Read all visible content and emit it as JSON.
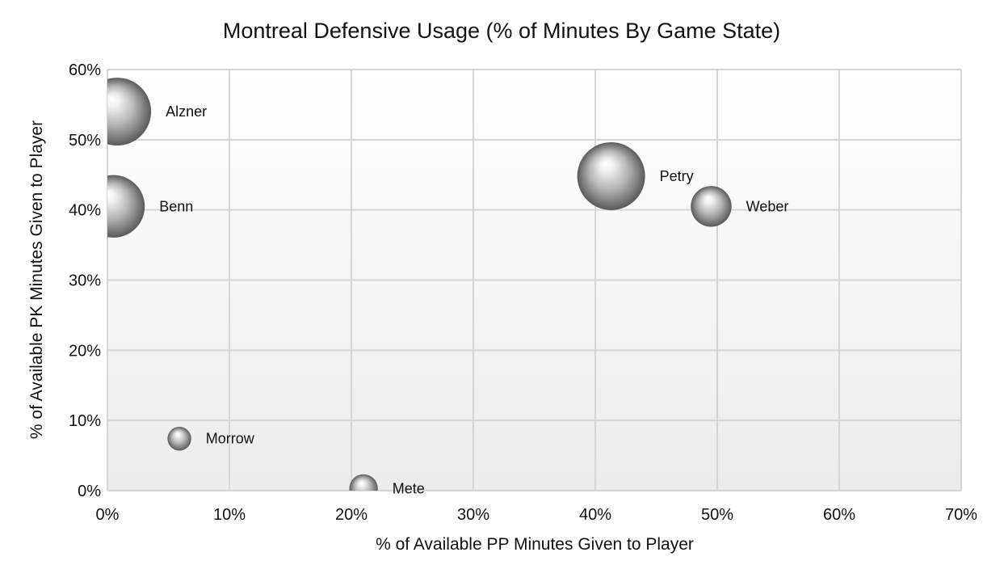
{
  "chart_data": {
    "type": "scatter",
    "subtype": "bubble",
    "title": "Montreal Defensive Usage (% of Minutes By Game State)",
    "xlabel": "% of Available PP Minutes Given to Player",
    "ylabel": "% of Available PK Minutes Given to Player",
    "xlim": [
      0,
      70
    ],
    "ylim": [
      0,
      60
    ],
    "x_ticks": [
      "0%",
      "10%",
      "20%",
      "30%",
      "40%",
      "50%",
      "60%",
      "70%"
    ],
    "y_ticks": [
      "0%",
      "10%",
      "20%",
      "30%",
      "40%",
      "50%",
      "60%"
    ],
    "grid": true,
    "legend": "none",
    "points": [
      {
        "label": "Alzner",
        "x": 0.8,
        "y": 54.0,
        "size": 1.0
      },
      {
        "label": "Benn",
        "x": 0.5,
        "y": 40.5,
        "size": 0.92
      },
      {
        "label": "Petry",
        "x": 41.3,
        "y": 44.8,
        "size": 1.0
      },
      {
        "label": "Weber",
        "x": 49.5,
        "y": 40.5,
        "size": 0.6
      },
      {
        "label": "Morrow",
        "x": 5.9,
        "y": 7.4,
        "size": 0.35
      },
      {
        "label": "Mete",
        "x": 21.0,
        "y": 0.3,
        "size": 0.42
      }
    ]
  }
}
